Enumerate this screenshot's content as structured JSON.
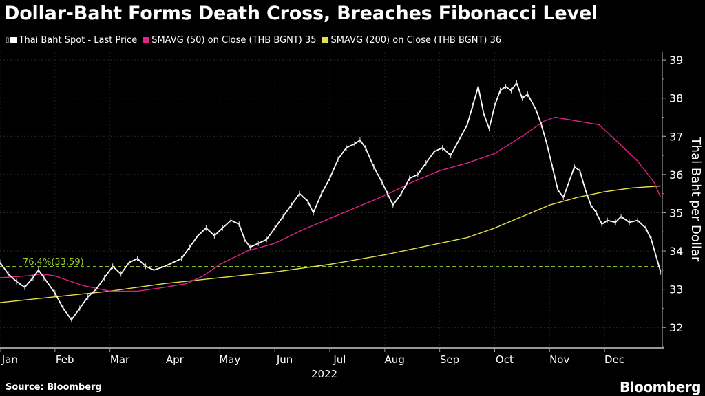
{
  "header": {
    "title": "Dollar-Baht Forms Death Cross, Breaches Fibonacci Level"
  },
  "legend": {
    "items": [
      {
        "label": "Thai Baht Spot - Last Price",
        "color": "#ffffff"
      },
      {
        "label": "SMAVG (50)  on Close (THB BGNT) 35",
        "color": "#e0218a"
      },
      {
        "label": "SMAVG (200)  on Close (THB BGNT) 36",
        "color": "#e6e04a"
      }
    ]
  },
  "footer": {
    "source": "Source: Bloomberg",
    "brand": "Bloomberg"
  },
  "chart_data": {
    "type": "line",
    "title": "Dollar-Baht Forms Death Cross, Breaches Fibonacci Level",
    "ylabel": "Thai Baht per Dollar",
    "xlabel": "2022",
    "ylim": [
      31.5,
      39.2
    ],
    "yticks": [
      32,
      33,
      34,
      35,
      36,
      37,
      38,
      39
    ],
    "xlim": [
      0,
      12.05
    ],
    "months": [
      {
        "label": "Jan",
        "x": 0.18
      },
      {
        "label": "Feb",
        "x": 1.18
      },
      {
        "label": "Mar",
        "x": 2.18
      },
      {
        "label": "Apr",
        "x": 3.18
      },
      {
        "label": "May",
        "x": 4.18
      },
      {
        "label": "Jun",
        "x": 5.18
      },
      {
        "label": "Jul",
        "x": 6.18
      },
      {
        "label": "Aug",
        "x": 7.18
      },
      {
        "label": "Sep",
        "x": 8.18
      },
      {
        "label": "Oct",
        "x": 9.18
      },
      {
        "label": "Nov",
        "x": 10.18
      },
      {
        "label": "Dec",
        "x": 11.18
      }
    ],
    "year_label": "2022",
    "fib_level": {
      "value": 33.59,
      "label": "76.4%(33.59)"
    },
    "series": [
      {
        "name": "Thai Baht Spot - Last Price",
        "color": "#ffffff",
        "points": [
          [
            0.0,
            33.7
          ],
          [
            0.15,
            33.4
          ],
          [
            0.3,
            33.2
          ],
          [
            0.45,
            33.05
          ],
          [
            0.6,
            33.3
          ],
          [
            0.7,
            33.5
          ],
          [
            0.8,
            33.3
          ],
          [
            1.0,
            32.9
          ],
          [
            1.15,
            32.5
          ],
          [
            1.3,
            32.2
          ],
          [
            1.45,
            32.5
          ],
          [
            1.6,
            32.8
          ],
          [
            1.75,
            33.0
          ],
          [
            1.9,
            33.3
          ],
          [
            2.05,
            33.6
          ],
          [
            2.2,
            33.4
          ],
          [
            2.35,
            33.7
          ],
          [
            2.5,
            33.8
          ],
          [
            2.65,
            33.6
          ],
          [
            2.8,
            33.5
          ],
          [
            3.0,
            33.6
          ],
          [
            3.15,
            33.7
          ],
          [
            3.3,
            33.8
          ],
          [
            3.45,
            34.1
          ],
          [
            3.6,
            34.4
          ],
          [
            3.75,
            34.6
          ],
          [
            3.9,
            34.4
          ],
          [
            4.05,
            34.6
          ],
          [
            4.2,
            34.8
          ],
          [
            4.35,
            34.7
          ],
          [
            4.45,
            34.3
          ],
          [
            4.55,
            34.1
          ],
          [
            4.7,
            34.2
          ],
          [
            4.85,
            34.3
          ],
          [
            5.0,
            34.6
          ],
          [
            5.15,
            34.9
          ],
          [
            5.3,
            35.2
          ],
          [
            5.45,
            35.5
          ],
          [
            5.6,
            35.3
          ],
          [
            5.7,
            35.0
          ],
          [
            5.85,
            35.5
          ],
          [
            6.0,
            35.9
          ],
          [
            6.15,
            36.4
          ],
          [
            6.3,
            36.7
          ],
          [
            6.45,
            36.8
          ],
          [
            6.55,
            36.9
          ],
          [
            6.65,
            36.7
          ],
          [
            6.8,
            36.2
          ],
          [
            6.95,
            35.8
          ],
          [
            7.05,
            35.5
          ],
          [
            7.15,
            35.2
          ],
          [
            7.3,
            35.5
          ],
          [
            7.45,
            35.9
          ],
          [
            7.6,
            36.0
          ],
          [
            7.75,
            36.3
          ],
          [
            7.9,
            36.6
          ],
          [
            8.05,
            36.7
          ],
          [
            8.2,
            36.5
          ],
          [
            8.35,
            36.9
          ],
          [
            8.5,
            37.3
          ],
          [
            8.6,
            37.8
          ],
          [
            8.7,
            38.3
          ],
          [
            8.8,
            37.6
          ],
          [
            8.9,
            37.2
          ],
          [
            9.0,
            37.8
          ],
          [
            9.1,
            38.2
          ],
          [
            9.2,
            38.3
          ],
          [
            9.3,
            38.2
          ],
          [
            9.4,
            38.4
          ],
          [
            9.5,
            38.0
          ],
          [
            9.6,
            38.1
          ],
          [
            9.75,
            37.7
          ],
          [
            9.85,
            37.3
          ],
          [
            9.95,
            36.8
          ],
          [
            10.05,
            36.2
          ],
          [
            10.15,
            35.6
          ],
          [
            10.25,
            35.4
          ],
          [
            10.35,
            35.8
          ],
          [
            10.45,
            36.2
          ],
          [
            10.55,
            36.1
          ],
          [
            10.65,
            35.6
          ],
          [
            10.75,
            35.2
          ],
          [
            10.85,
            35.0
          ],
          [
            10.95,
            34.7
          ],
          [
            11.05,
            34.8
          ],
          [
            11.2,
            34.75
          ],
          [
            11.3,
            34.9
          ],
          [
            11.45,
            34.75
          ],
          [
            11.6,
            34.8
          ],
          [
            11.75,
            34.6
          ],
          [
            11.85,
            34.3
          ],
          [
            11.95,
            33.8
          ],
          [
            12.02,
            33.45
          ]
        ]
      },
      {
        "name": "SMAVG (50) on Close",
        "color": "#e0218a",
        "points": [
          [
            0.0,
            33.3
          ],
          [
            0.5,
            33.35
          ],
          [
            0.75,
            33.4
          ],
          [
            1.0,
            33.35
          ],
          [
            1.5,
            33.1
          ],
          [
            2.0,
            32.95
          ],
          [
            2.5,
            32.95
          ],
          [
            3.0,
            33.05
          ],
          [
            3.4,
            33.15
          ],
          [
            3.7,
            33.35
          ],
          [
            4.0,
            33.65
          ],
          [
            4.5,
            34.0
          ],
          [
            5.0,
            34.2
          ],
          [
            5.5,
            34.55
          ],
          [
            6.0,
            34.85
          ],
          [
            6.5,
            35.15
          ],
          [
            7.0,
            35.45
          ],
          [
            7.5,
            35.8
          ],
          [
            8.0,
            36.1
          ],
          [
            8.5,
            36.3
          ],
          [
            9.0,
            36.55
          ],
          [
            9.5,
            37.0
          ],
          [
            9.9,
            37.4
          ],
          [
            10.1,
            37.5
          ],
          [
            10.5,
            37.4
          ],
          [
            10.9,
            37.3
          ],
          [
            11.2,
            36.9
          ],
          [
            11.6,
            36.35
          ],
          [
            11.9,
            35.8
          ],
          [
            12.02,
            35.4
          ]
        ]
      },
      {
        "name": "SMAVG (200) on Close",
        "color": "#e6e04a",
        "points": [
          [
            0.0,
            32.65
          ],
          [
            1.0,
            32.8
          ],
          [
            2.0,
            32.95
          ],
          [
            3.0,
            33.15
          ],
          [
            4.0,
            33.3
          ],
          [
            5.0,
            33.45
          ],
          [
            6.0,
            33.65
          ],
          [
            7.0,
            33.9
          ],
          [
            8.0,
            34.2
          ],
          [
            8.5,
            34.35
          ],
          [
            9.0,
            34.6
          ],
          [
            9.5,
            34.9
          ],
          [
            10.0,
            35.2
          ],
          [
            10.5,
            35.4
          ],
          [
            11.0,
            35.55
          ],
          [
            11.5,
            35.65
          ],
          [
            12.02,
            35.7
          ]
        ]
      }
    ]
  }
}
